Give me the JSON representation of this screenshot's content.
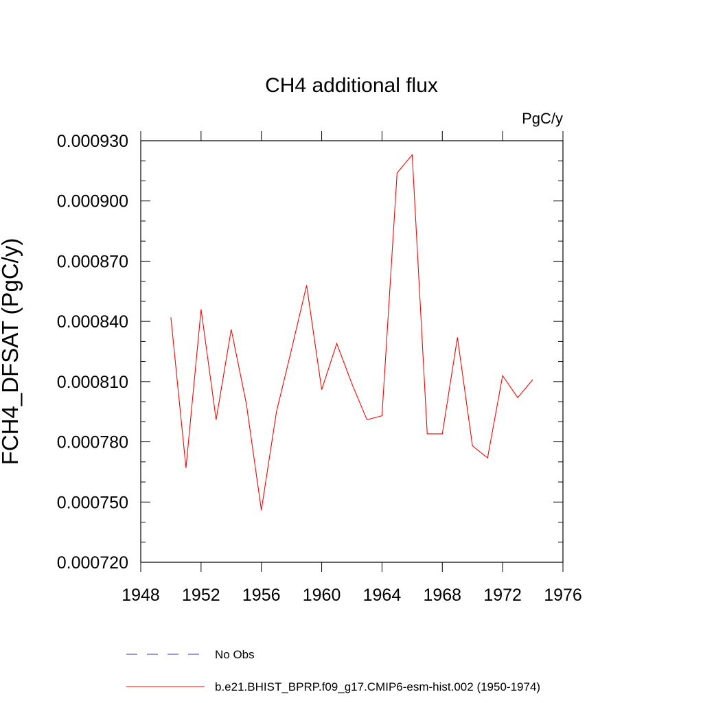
{
  "chart_data": {
    "type": "line",
    "title": "CH4 additional flux",
    "units_label": "PgC/y",
    "ylabel": "FCH4_DFSAT  (PgC/y)",
    "xlabel": "",
    "xlim": [
      1948,
      1976
    ],
    "ylim": [
      0.00072,
      0.00093
    ],
    "x_ticks": [
      1948,
      1952,
      1956,
      1960,
      1964,
      1968,
      1972,
      1976
    ],
    "x_tick_labels": [
      "1948",
      "1952",
      "1956",
      "1960",
      "1964",
      "1968",
      "1972",
      "1976"
    ],
    "y_ticks": [
      0.00072,
      0.00075,
      0.00078,
      0.00081,
      0.00084,
      0.00087,
      0.0009,
      0.00093
    ],
    "y_tick_labels": [
      "0.000720",
      "0.000750",
      "0.000780",
      "0.000810",
      "0.000840",
      "0.000870",
      "0.000900",
      "0.000930"
    ],
    "grid": false,
    "legend_position": "bottom",
    "series": [
      {
        "name": "No Obs",
        "color": "#3333aa",
        "style": "dashed",
        "x": [],
        "y": []
      },
      {
        "name": "b.e21.BHIST_BPRP.f09_g17.CMIP6-esm-hist.002 (1950-1974)",
        "color": "#ff0000",
        "style": "solid",
        "x": [
          1950,
          1951,
          1952,
          1953,
          1954,
          1955,
          1956,
          1957,
          1958,
          1959,
          1960,
          1961,
          1962,
          1963,
          1964,
          1965,
          1966,
          1967,
          1968,
          1969,
          1970,
          1971,
          1972,
          1973,
          1974
        ],
        "y": [
          0.000842,
          0.000767,
          0.000846,
          0.000791,
          0.000836,
          0.000799,
          0.000746,
          0.000795,
          0.000826,
          0.000858,
          0.000806,
          0.000829,
          0.000809,
          0.000791,
          0.000793,
          0.000914,
          0.000923,
          0.000784,
          0.000784,
          0.000832,
          0.000778,
          0.000772,
          0.000813,
          0.000802,
          0.000811
        ]
      }
    ]
  }
}
